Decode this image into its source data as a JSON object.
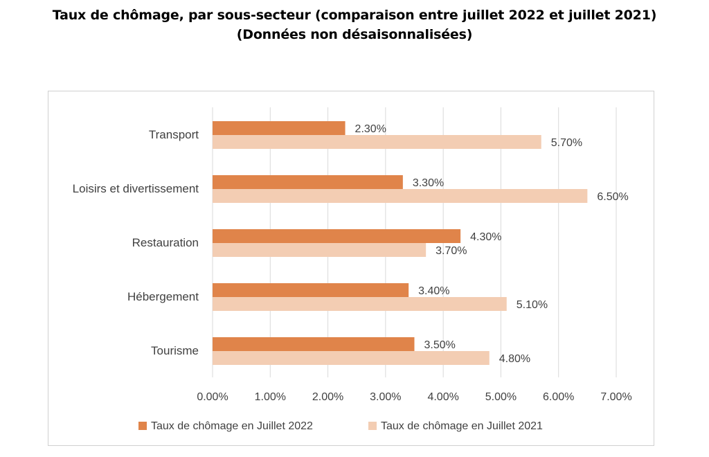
{
  "title": {
    "line1": "Taux de chômage, par sous-secteur (comparaison entre juillet  2022 et juillet  2021)",
    "line2": "(Données non désaisonnalisées)"
  },
  "chart_data": {
    "type": "bar",
    "orientation": "horizontal",
    "categories": [
      "Transport",
      "Loisirs et divertissement",
      "Restauration",
      "Hébergement",
      "Tourisme"
    ],
    "series": [
      {
        "name": "Taux de chômage en Juillet 2022",
        "color": "#E0844A",
        "values": [
          2.3,
          3.3,
          4.3,
          3.4,
          3.5
        ],
        "labels": [
          "2.30%",
          "3.30%",
          "4.30%",
          "3.40%",
          "3.50%"
        ]
      },
      {
        "name": "Taux de chômage en Juillet 2021",
        "color": "#F3CDB3",
        "values": [
          5.7,
          6.5,
          3.7,
          5.1,
          4.8
        ],
        "labels": [
          "5.70%",
          "6.50%",
          "3.70%",
          "5.10%",
          "4.80%"
        ]
      }
    ],
    "xlim": [
      0,
      7
    ],
    "xticks": [
      0,
      1,
      2,
      3,
      4,
      5,
      6,
      7
    ],
    "xtick_labels": [
      "0.00%",
      "1.00%",
      "2.00%",
      "3.00%",
      "4.00%",
      "5.00%",
      "6.00%",
      "7.00%"
    ],
    "grid": "vertical",
    "legend_position": "bottom"
  }
}
